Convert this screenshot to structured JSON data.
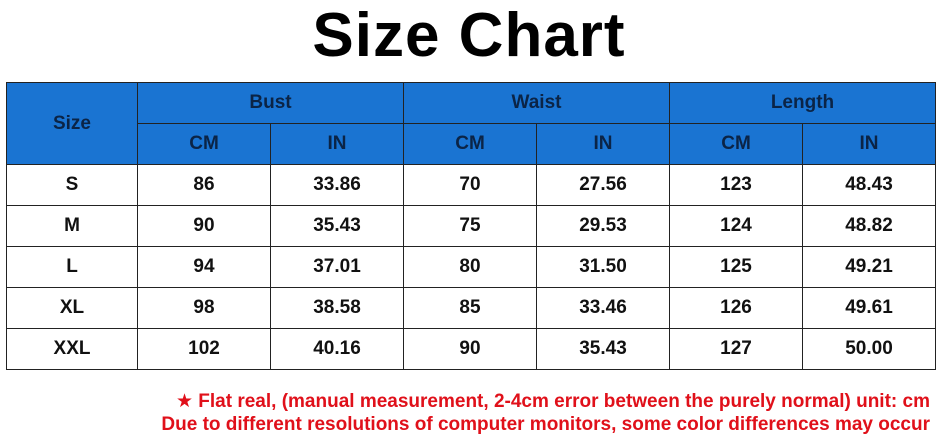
{
  "title": "Size Chart",
  "table": {
    "size_header": "Size",
    "groups": [
      "Bust",
      "Waist",
      "Length"
    ],
    "units": [
      "CM",
      "IN",
      "CM",
      "IN",
      "CM",
      "IN"
    ],
    "rows": [
      [
        "S",
        "86",
        "33.86",
        "70",
        "27.56",
        "123",
        "48.43"
      ],
      [
        "M",
        "90",
        "35.43",
        "75",
        "29.53",
        "124",
        "48.82"
      ],
      [
        "L",
        "94",
        "37.01",
        "80",
        "31.50",
        "125",
        "49.21"
      ],
      [
        "XL",
        "98",
        "38.58",
        "85",
        "33.46",
        "126",
        "49.61"
      ],
      [
        "XXL",
        "102",
        "40.16",
        "90",
        "35.43",
        "127",
        "50.00"
      ]
    ]
  },
  "notes": [
    "★ Flat real, (manual measurement, 2-4cm error between the purely normal) unit: cm",
    "Due to different resolutions of computer monitors, some color differences may occur"
  ],
  "colors": {
    "header_bg": "#1a74d2",
    "note_text": "#e0101a"
  }
}
